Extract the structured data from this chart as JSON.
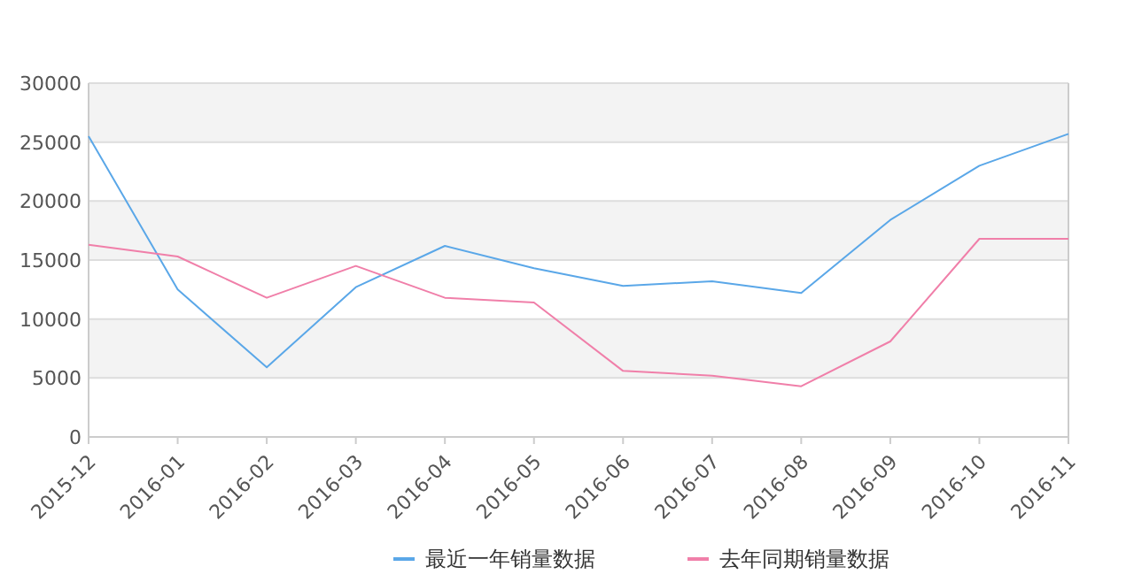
{
  "chart_data": {
    "type": "line",
    "categories": [
      "2015-12",
      "2016-01",
      "2016-02",
      "2016-03",
      "2016-04",
      "2016-05",
      "2016-06",
      "2016-07",
      "2016-08",
      "2016-09",
      "2016-10",
      "2016-11"
    ],
    "series": [
      {
        "name": "最近一年销量数据",
        "color": "#5aa7e8",
        "values": [
          25500,
          12500,
          5900,
          12700,
          16200,
          14300,
          12800,
          13200,
          12200,
          18400,
          23000,
          25700
        ]
      },
      {
        "name": "去年同期销量数据",
        "color": "#f07fa9",
        "values": [
          16300,
          15300,
          11800,
          14500,
          11800,
          11400,
          5600,
          5200,
          4300,
          8100,
          16800,
          16800
        ]
      }
    ],
    "ylim": [
      0,
      30000
    ],
    "yticks": [
      0,
      5000,
      10000,
      15000,
      20000,
      25000,
      30000
    ],
    "grid": "y",
    "legend": "bottom",
    "marker": "none",
    "line_style": "solid"
  }
}
